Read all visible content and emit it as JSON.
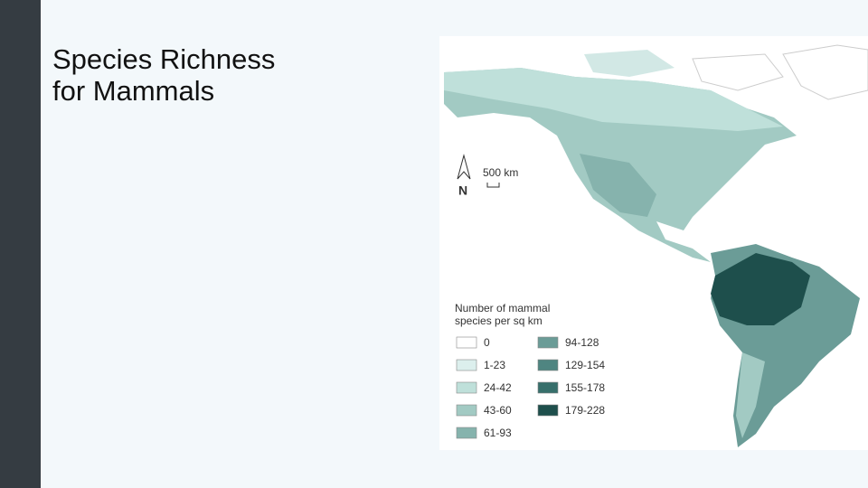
{
  "slide": {
    "title_lines": [
      "Species Richness",
      "for Mammals"
    ]
  },
  "map": {
    "north_label": "N",
    "scale_label": "500 km",
    "legend": {
      "title_lines": [
        "Number of mammal",
        "species per sq km"
      ],
      "items": [
        {
          "label": "0",
          "color": "#ffffff"
        },
        {
          "label": "1-23",
          "color": "#dcefed"
        },
        {
          "label": "24-42",
          "color": "#bfe0da"
        },
        {
          "label": "43-60",
          "color": "#a2cac3"
        },
        {
          "label": "61-93",
          "color": "#86b3ad"
        },
        {
          "label": "94-128",
          "color": "#6b9c97"
        },
        {
          "label": "129-154",
          "color": "#4f8581"
        },
        {
          "label": "155-178",
          "color": "#376f6b"
        },
        {
          "label": "179-228",
          "color": "#1e4f4c"
        }
      ]
    }
  }
}
